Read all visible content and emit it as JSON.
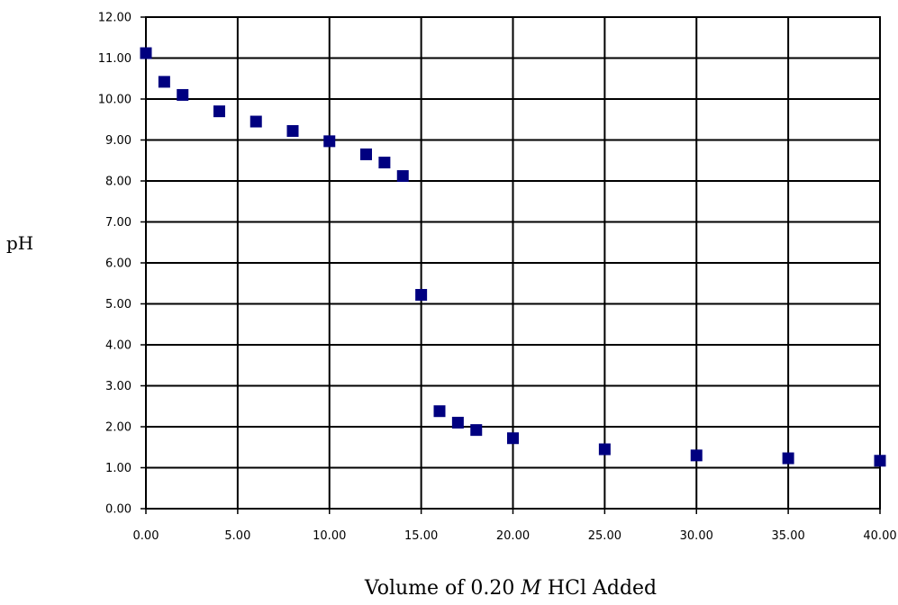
{
  "chart_data": {
    "type": "scatter",
    "xlabel_parts": {
      "before": "Volume of 0.20 ",
      "italic": "M",
      "after": " HCl Added"
    },
    "ylabel": "pH",
    "xlim": [
      0,
      40
    ],
    "ylim": [
      0,
      12
    ],
    "x_ticks": [
      "0.00",
      "5.00",
      "10.00",
      "15.00",
      "20.00",
      "25.00",
      "30.00",
      "35.00",
      "40.00"
    ],
    "y_ticks": [
      "0.00",
      "1.00",
      "2.00",
      "3.00",
      "4.00",
      "5.00",
      "6.00",
      "7.00",
      "8.00",
      "9.00",
      "10.00",
      "11.00",
      "12.00"
    ],
    "grid": true,
    "marker_color": "#000080",
    "series": [
      {
        "x": [
          0,
          1,
          2,
          4,
          6,
          8,
          10,
          12,
          13,
          14,
          15,
          16,
          17,
          18,
          20,
          25,
          30,
          35,
          40
        ],
        "y": [
          11.12,
          10.42,
          10.1,
          9.7,
          9.45,
          9.22,
          8.97,
          8.65,
          8.45,
          8.12,
          5.22,
          2.38,
          2.1,
          1.92,
          1.72,
          1.45,
          1.3,
          1.23,
          1.17
        ]
      }
    ]
  }
}
